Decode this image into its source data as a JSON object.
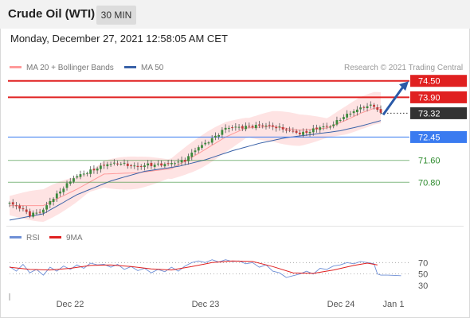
{
  "instrument": "Crude Oil (WTI)",
  "timeframe": "30 MIN",
  "datetime": "Monday, December 27, 2021 12:58:05 AM CET",
  "credit": "Research © 2021 Trading Central",
  "legend_main": [
    {
      "label": "MA 20 + Bollinger Bands",
      "color": "#ff9a9a"
    },
    {
      "label": "MA 50",
      "color": "#3a62a8"
    }
  ],
  "legend_rsi": [
    {
      "label": "RSI",
      "color": "#6e8fd6"
    },
    {
      "label": "9MA",
      "color": "#e02020"
    }
  ],
  "colors": {
    "resistance": "#e02020",
    "pivot": "#3a7bf0",
    "support": "#2e8b2e",
    "current": "#333333",
    "arrow": "#2a5aa8"
  },
  "chart_data": [
    {
      "type": "candlestick",
      "title": "Crude Oil (WTI) 30 MIN",
      "x_ticks": [
        "Dec 22",
        "Dec 23",
        "Dec 24",
        "Jan 1"
      ],
      "ylim": [
        69.3,
        74.55
      ],
      "current_price": 73.32,
      "levels": [
        {
          "label": "74.50",
          "value": 74.5,
          "kind": "resistance"
        },
        {
          "label": "73.90",
          "value": 73.9,
          "kind": "resistance"
        },
        {
          "label": "72.45",
          "value": 72.45,
          "kind": "pivot"
        },
        {
          "label": "71.60",
          "value": 71.6,
          "kind": "support"
        },
        {
          "label": "70.80",
          "value": 70.8,
          "kind": "support"
        }
      ],
      "close_path": [
        [
          0,
          70.03
        ],
        [
          4,
          69.8
        ],
        [
          6,
          69.62
        ],
        [
          10,
          69.78
        ],
        [
          12,
          70.1
        ],
        [
          14,
          70.35
        ],
        [
          16,
          70.62
        ],
        [
          19,
          70.95
        ],
        [
          22,
          71.12
        ],
        [
          26,
          71.33
        ],
        [
          29,
          71.45
        ],
        [
          33,
          71.5
        ],
        [
          38,
          71.35
        ],
        [
          41,
          71.45
        ],
        [
          47,
          71.45
        ],
        [
          52,
          71.62
        ],
        [
          55,
          71.98
        ],
        [
          59,
          72.3
        ],
        [
          62,
          72.58
        ],
        [
          64,
          72.77
        ],
        [
          66,
          72.8
        ],
        [
          70,
          72.83
        ],
        [
          73,
          72.85
        ],
        [
          76,
          72.88
        ],
        [
          79,
          72.83
        ],
        [
          82,
          72.7
        ],
        [
          86,
          72.58
        ],
        [
          89,
          72.67
        ],
        [
          92,
          72.8
        ],
        [
          95,
          72.85
        ],
        [
          98,
          73.12
        ],
        [
          102,
          73.38
        ],
        [
          105,
          73.58
        ],
        [
          108,
          73.6
        ],
        [
          109,
          73.42
        ],
        [
          110,
          73.3
        ]
      ],
      "ma20_bollinger": [
        [
          0,
          69.95
        ],
        [
          10,
          69.95
        ],
        [
          20,
          70.55
        ],
        [
          28,
          71.1
        ],
        [
          38,
          71.15
        ],
        [
          48,
          71.3
        ],
        [
          56,
          71.85
        ],
        [
          64,
          72.45
        ],
        [
          70,
          72.78
        ],
        [
          78,
          72.84
        ],
        [
          86,
          72.7
        ],
        [
          94,
          72.78
        ],
        [
          100,
          73.08
        ],
        [
          104,
          73.32
        ],
        [
          108,
          73.5
        ],
        [
          110,
          73.52
        ]
      ],
      "ma50": [
        [
          0,
          69.42
        ],
        [
          10,
          69.65
        ],
        [
          20,
          70.35
        ],
        [
          30,
          70.85
        ],
        [
          40,
          71.2
        ],
        [
          50,
          71.38
        ],
        [
          58,
          71.62
        ],
        [
          66,
          71.95
        ],
        [
          74,
          72.22
        ],
        [
          82,
          72.43
        ],
        [
          90,
          72.55
        ],
        [
          98,
          72.68
        ],
        [
          104,
          72.85
        ],
        [
          110,
          73.05
        ]
      ],
      "projection": {
        "from": 73.32,
        "to": 74.4
      }
    },
    {
      "type": "line",
      "title": "RSI",
      "yticks": [
        70,
        50,
        30
      ],
      "ylim": [
        23,
        90
      ],
      "series": [
        {
          "name": "RSI",
          "color": "#6e8fd6",
          "values": [
            [
              0,
              63
            ],
            [
              2,
              55
            ],
            [
              4,
              67
            ],
            [
              6,
              52
            ],
            [
              8,
              58
            ],
            [
              10,
              48
            ],
            [
              12,
              62
            ],
            [
              14,
              55
            ],
            [
              16,
              64
            ],
            [
              18,
              58
            ],
            [
              20,
              66
            ],
            [
              22,
              60
            ],
            [
              24,
              69
            ],
            [
              26,
              66
            ],
            [
              28,
              67
            ],
            [
              30,
              62
            ],
            [
              32,
              67
            ],
            [
              34,
              58
            ],
            [
              36,
              63
            ],
            [
              38,
              56
            ],
            [
              40,
              60
            ],
            [
              42,
              52
            ],
            [
              44,
              58
            ],
            [
              46,
              54
            ],
            [
              48,
              62
            ],
            [
              50,
              55
            ],
            [
              52,
              64
            ],
            [
              54,
              70
            ],
            [
              56,
              73
            ],
            [
              58,
              70
            ],
            [
              60,
              75
            ],
            [
              62,
              71
            ],
            [
              64,
              75
            ],
            [
              66,
              72
            ],
            [
              68,
              73
            ],
            [
              70,
              68
            ],
            [
              72,
              70
            ],
            [
              74,
              62
            ],
            [
              76,
              66
            ],
            [
              78,
              55
            ],
            [
              80,
              52
            ],
            [
              82,
              44
            ],
            [
              84,
              47
            ],
            [
              86,
              50
            ],
            [
              88,
              55
            ],
            [
              90,
              50
            ],
            [
              92,
              60
            ],
            [
              94,
              58
            ],
            [
              96,
              64
            ],
            [
              98,
              66
            ],
            [
              100,
              70
            ],
            [
              102,
              68
            ],
            [
              104,
              72
            ],
            [
              106,
              70
            ],
            [
              108,
              68
            ],
            [
              109,
              50
            ],
            [
              110,
              48
            ],
            [
              112,
              48
            ],
            [
              116,
              47
            ]
          ]
        },
        {
          "name": "9MA",
          "color": "#e02020",
          "values": [
            [
              0,
              62
            ],
            [
              6,
              58
            ],
            [
              12,
              57
            ],
            [
              18,
              60
            ],
            [
              24,
              65
            ],
            [
              30,
              66
            ],
            [
              36,
              63
            ],
            [
              42,
              59
            ],
            [
              48,
              57
            ],
            [
              54,
              63
            ],
            [
              60,
              70
            ],
            [
              66,
              73
            ],
            [
              72,
              72
            ],
            [
              78,
              63
            ],
            [
              84,
              52
            ],
            [
              90,
              51
            ],
            [
              96,
              57
            ],
            [
              102,
              65
            ],
            [
              106,
              69
            ],
            [
              109,
              66
            ]
          ]
        }
      ]
    }
  ]
}
